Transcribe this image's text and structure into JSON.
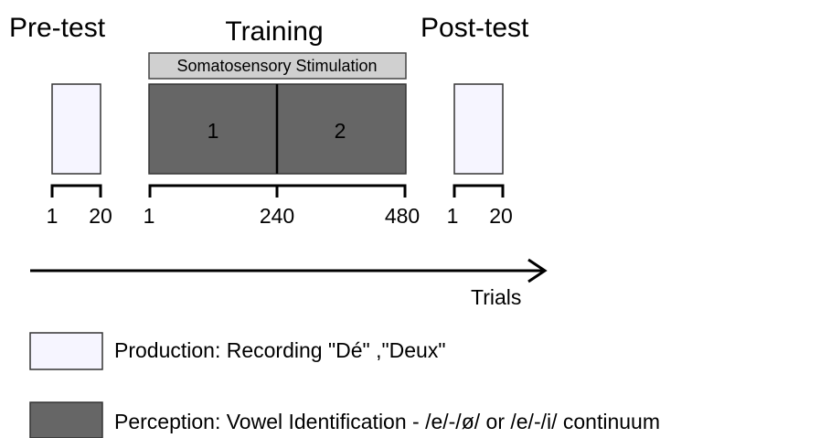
{
  "phases": [
    {
      "title": "Pre-test",
      "ticks": [
        "1",
        "20"
      ]
    },
    {
      "title": "Training",
      "banner": "Somatosensory Stimulation",
      "blocks": [
        "1",
        "2"
      ],
      "ticks": [
        "1",
        "240",
        "480"
      ]
    },
    {
      "title": "Post-test",
      "ticks": [
        "1",
        "20"
      ]
    }
  ],
  "axis_label": "Trials",
  "legend": [
    {
      "label": "Production: Recording \"Dé\" ,\"Deux\""
    },
    {
      "label": "Perception: Vowel Identification - /e/-/ø/ or /e/-/i/ continuum"
    }
  ]
}
